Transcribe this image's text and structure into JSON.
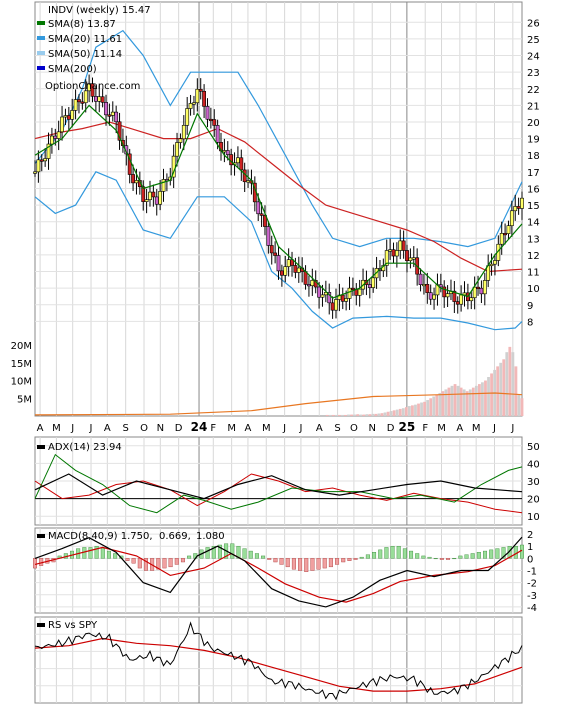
{
  "chart_data": {
    "type": "candlestick",
    "site": "OptionChance.com",
    "price_panel": {
      "title": "INDV (weekly) 15.47",
      "legend": [
        {
          "label": "SMA(8) 13.87",
          "color": "#007700"
        },
        {
          "label": "SMA(20) 11.61",
          "color": "#3399dd"
        },
        {
          "label": "SMA(50) 11.14",
          "color": "#99ccee"
        },
        {
          "label": "SMA(200)",
          "color": "#0000cc"
        }
      ],
      "y_ticks": [
        "26",
        "25",
        "24",
        "23",
        "22",
        "21",
        "20",
        "19",
        "18",
        "17",
        "16",
        "15",
        "14",
        "13",
        "12",
        "11",
        "10",
        "9",
        "8"
      ],
      "ylim": [
        7,
        26.5
      ],
      "close_path": [
        [
          0,
          17
        ],
        [
          4,
          18.5
        ],
        [
          8,
          20
        ],
        [
          12,
          21
        ],
        [
          16,
          22
        ],
        [
          20,
          21
        ],
        [
          24,
          20
        ],
        [
          28,
          17
        ],
        [
          32,
          15.5
        ],
        [
          36,
          15.4
        ],
        [
          40,
          17
        ],
        [
          44,
          20
        ],
        [
          48,
          22
        ],
        [
          52,
          20
        ],
        [
          56,
          18
        ],
        [
          60,
          17.5
        ],
        [
          64,
          16
        ],
        [
          68,
          13.5
        ],
        [
          72,
          11
        ],
        [
          76,
          11.5
        ],
        [
          80,
          10.5
        ],
        [
          84,
          9.8
        ],
        [
          88,
          9
        ],
        [
          92,
          9.6
        ],
        [
          96,
          10
        ],
        [
          100,
          10.5
        ],
        [
          104,
          12
        ],
        [
          108,
          12.5
        ],
        [
          112,
          11.5
        ],
        [
          116,
          9.5
        ],
        [
          120,
          10
        ],
        [
          124,
          9.3
        ],
        [
          128,
          9.5
        ],
        [
          132,
          10
        ],
        [
          136,
          12
        ],
        [
          140,
          14
        ],
        [
          144,
          15.5
        ]
      ],
      "sma8_path": [
        [
          0,
          18
        ],
        [
          8,
          19
        ],
        [
          16,
          21
        ],
        [
          24,
          19.5
        ],
        [
          32,
          16
        ],
        [
          40,
          16.5
        ],
        [
          48,
          20.5
        ],
        [
          56,
          18
        ],
        [
          64,
          16.5
        ],
        [
          72,
          12.5
        ],
        [
          80,
          11
        ],
        [
          88,
          9.4
        ],
        [
          96,
          10
        ],
        [
          104,
          11.5
        ],
        [
          112,
          11.5
        ],
        [
          120,
          10
        ],
        [
          128,
          9.5
        ],
        [
          136,
          12
        ],
        [
          144,
          13.87
        ]
      ],
      "sma20_upper_path": [
        [
          0,
          17.5
        ],
        [
          8,
          19.5
        ],
        [
          14,
          22
        ],
        [
          18,
          24.5
        ],
        [
          26,
          25.5
        ],
        [
          32,
          24
        ],
        [
          40,
          21
        ],
        [
          46,
          23
        ],
        [
          52,
          23
        ],
        [
          60,
          23
        ],
        [
          66,
          21
        ],
        [
          74,
          18
        ],
        [
          82,
          15
        ],
        [
          88,
          13
        ],
        [
          96,
          12.5
        ],
        [
          104,
          13
        ],
        [
          112,
          13
        ],
        [
          120,
          12.8
        ],
        [
          128,
          12.5
        ],
        [
          136,
          13
        ],
        [
          144,
          16.4
        ]
      ],
      "sma20_lower_path": [
        [
          0,
          15.5
        ],
        [
          6,
          14.5
        ],
        [
          12,
          15
        ],
        [
          18,
          17
        ],
        [
          24,
          16.5
        ],
        [
          32,
          13.5
        ],
        [
          40,
          13
        ],
        [
          48,
          15.5
        ],
        [
          56,
          15.5
        ],
        [
          64,
          14
        ],
        [
          70,
          11
        ],
        [
          76,
          10
        ],
        [
          82,
          8.6
        ],
        [
          88,
          7.6
        ],
        [
          94,
          8.2
        ],
        [
          104,
          8.3
        ],
        [
          112,
          8.2
        ],
        [
          120,
          8.2
        ],
        [
          128,
          7.9
        ],
        [
          136,
          7.5
        ],
        [
          142,
          7.6
        ],
        [
          144,
          8
        ]
      ],
      "sma50_path": [
        [
          0,
          19
        ],
        [
          8,
          19.4
        ],
        [
          14,
          19.6
        ],
        [
          22,
          20
        ],
        [
          30,
          19.5
        ],
        [
          38,
          19
        ],
        [
          46,
          19
        ],
        [
          54,
          19.6
        ],
        [
          62,
          18.8
        ],
        [
          70,
          17.5
        ],
        [
          78,
          16.2
        ],
        [
          86,
          15
        ],
        [
          94,
          14.5
        ],
        [
          102,
          14
        ],
        [
          110,
          13.5
        ],
        [
          118,
          12.8
        ],
        [
          126,
          11.8
        ],
        [
          134,
          11
        ],
        [
          144,
          11.14
        ]
      ]
    },
    "volume_panel": {
      "y_ticks": [
        "20M",
        "15M",
        "10M",
        "5M"
      ],
      "ylim": [
        0,
        22
      ],
      "bars_millions": [
        0.3,
        0.3,
        0.3,
        0.3,
        0.3,
        0.3,
        0.3,
        0.4,
        0.4,
        0.4,
        0.5,
        0.4,
        0.4,
        0.5,
        0.5,
        0.6,
        0.6,
        0.7,
        0.8,
        1.0,
        1.2,
        1.4,
        1.6,
        1.8,
        2.0,
        2.2,
        2.5,
        2.8,
        3.0,
        3.2,
        3.5,
        3.8,
        4.0,
        4.5,
        5.0,
        5.5,
        6.0,
        6.5,
        7.0,
        7.5,
        8.0,
        8.5,
        9.0,
        8.5,
        8.0,
        7.5,
        7.0,
        7.5,
        8.0,
        8.5,
        9.0,
        9.5,
        10.0,
        11.0,
        12.0,
        13.0,
        14.0,
        15.0,
        16.0,
        18.0,
        19.5,
        18.0,
        14.0,
        6.0,
        5.0
      ],
      "avg_path": [
        [
          0,
          0.3
        ],
        [
          40,
          0.5
        ],
        [
          64,
          1.5
        ],
        [
          80,
          3.5
        ],
        [
          100,
          5.5
        ],
        [
          120,
          6
        ],
        [
          136,
          6.5
        ],
        [
          144,
          6
        ]
      ]
    },
    "x_months": [
      {
        "i": 2,
        "label": "A"
      },
      {
        "i": 10,
        "label": "M"
      },
      {
        "i": 18,
        "label": "J"
      },
      {
        "i": 27,
        "label": "J"
      },
      {
        "i": 35,
        "label": "A"
      },
      {
        "i": 44,
        "label": "S"
      },
      {
        "i": 53,
        "label": "O"
      },
      {
        "i": 61,
        "label": "N"
      },
      {
        "i": 70,
        "label": "D"
      },
      {
        "i": 80,
        "label": "24",
        "year": true
      },
      {
        "i": 87,
        "label": "F"
      },
      {
        "i": 96,
        "label": "M"
      },
      {
        "i": 104,
        "label": "A"
      },
      {
        "i": 113,
        "label": "M"
      },
      {
        "i": 122,
        "label": "J"
      },
      {
        "i": 130,
        "label": "J"
      },
      {
        "i": 139,
        "label": "A"
      },
      {
        "i": 148,
        "label": "S"
      },
      {
        "i": 156,
        "label": "O"
      },
      {
        "i": 165,
        "label": "N"
      },
      {
        "i": 174,
        "label": "D"
      },
      {
        "i": 182,
        "label": "25",
        "year": true
      },
      {
        "i": 191,
        "label": "F"
      },
      {
        "i": 199,
        "label": "M"
      },
      {
        "i": 208,
        "label": "A"
      },
      {
        "i": 216,
        "label": "M"
      },
      {
        "i": 225,
        "label": "J"
      },
      {
        "i": 234,
        "label": "J"
      }
    ],
    "adx_panel": {
      "title": "ADX(14) 23.94",
      "y_ticks": [
        "50",
        "40",
        "30",
        "20",
        "10"
      ],
      "ylim": [
        5,
        55
      ],
      "adx": [
        [
          0,
          25
        ],
        [
          10,
          34
        ],
        [
          20,
          22
        ],
        [
          30,
          30
        ],
        [
          40,
          25
        ],
        [
          50,
          20
        ],
        [
          60,
          28
        ],
        [
          70,
          33
        ],
        [
          80,
          25
        ],
        [
          90,
          22
        ],
        [
          100,
          25
        ],
        [
          110,
          28
        ],
        [
          120,
          30
        ],
        [
          130,
          26
        ],
        [
          144,
          23.94
        ]
      ],
      "plus_di": [
        [
          0,
          20
        ],
        [
          6,
          45
        ],
        [
          12,
          36
        ],
        [
          20,
          28
        ],
        [
          28,
          16
        ],
        [
          36,
          12
        ],
        [
          44,
          22
        ],
        [
          50,
          19
        ],
        [
          58,
          14
        ],
        [
          66,
          18
        ],
        [
          76,
          26
        ],
        [
          86,
          24
        ],
        [
          96,
          24
        ],
        [
          106,
          20
        ],
        [
          114,
          22
        ],
        [
          124,
          18
        ],
        [
          132,
          28
        ],
        [
          140,
          36
        ],
        [
          144,
          38
        ]
      ],
      "minus_di": [
        [
          0,
          30
        ],
        [
          8,
          20
        ],
        [
          16,
          22
        ],
        [
          24,
          28
        ],
        [
          32,
          30
        ],
        [
          40,
          25
        ],
        [
          48,
          16
        ],
        [
          56,
          24
        ],
        [
          64,
          34
        ],
        [
          72,
          30
        ],
        [
          80,
          24
        ],
        [
          88,
          26
        ],
        [
          96,
          22
        ],
        [
          104,
          19
        ],
        [
          112,
          23
        ],
        [
          120,
          20
        ],
        [
          128,
          18
        ],
        [
          136,
          14
        ],
        [
          144,
          12
        ]
      ]
    },
    "macd_panel": {
      "title": "MACD(8,40,9) 1.750,",
      "signal_label": "0.669,",
      "hist_label": "1.080",
      "signal_color": "#cc0000",
      "hist_color": "#0000cc",
      "y_ticks": [
        "2",
        "1",
        "0",
        "-1",
        "-2",
        "-3",
        "-4"
      ],
      "ylim": [
        -4.5,
        2.5
      ],
      "macd": [
        [
          0,
          0
        ],
        [
          8,
          0.8
        ],
        [
          16,
          1.7
        ],
        [
          24,
          0.5
        ],
        [
          32,
          -2
        ],
        [
          40,
          -2.8
        ],
        [
          48,
          0.2
        ],
        [
          54,
          1.0
        ],
        [
          62,
          -0.2
        ],
        [
          70,
          -2.5
        ],
        [
          78,
          -3.5
        ],
        [
          86,
          -4
        ],
        [
          94,
          -3.2
        ],
        [
          102,
          -1.8
        ],
        [
          110,
          -1.0
        ],
        [
          118,
          -1.5
        ],
        [
          126,
          -1.0
        ],
        [
          134,
          -1.0
        ],
        [
          140,
          0.5
        ],
        [
          144,
          1.75
        ]
      ],
      "signal": [
        [
          0,
          -0.5
        ],
        [
          10,
          0.2
        ],
        [
          20,
          0.9
        ],
        [
          30,
          0.2
        ],
        [
          40,
          -1.4
        ],
        [
          50,
          -0.8
        ],
        [
          58,
          0.4
        ],
        [
          66,
          -0.8
        ],
        [
          74,
          -2.1
        ],
        [
          84,
          -3.2
        ],
        [
          92,
          -3.6
        ],
        [
          100,
          -2.9
        ],
        [
          108,
          -1.9
        ],
        [
          118,
          -1.4
        ],
        [
          128,
          -1.1
        ],
        [
          136,
          -0.6
        ],
        [
          144,
          0.669
        ]
      ],
      "hist": [
        -0.8,
        -0.6,
        -0.4,
        -0.3,
        0.2,
        0.4,
        0.6,
        0.8,
        0.9,
        0.9,
        1.0,
        0.8,
        0.6,
        0.4,
        0.2,
        -0.2,
        -0.4,
        -0.8,
        -1.0,
        -1.0,
        -0.9,
        -0.8,
        -0.7,
        -0.5,
        -0.3,
        0.2,
        0.4,
        0.7,
        0.9,
        1.0,
        1.1,
        1.2,
        1.2,
        1.0,
        0.8,
        0.6,
        0.4,
        0.2,
        -0.1,
        -0.3,
        -0.5,
        -0.7,
        -0.9,
        -1.0,
        -1.1,
        -1.0,
        -0.9,
        -0.8,
        -0.7,
        -0.5,
        -0.3,
        -0.2,
        -0.1,
        0.1,
        0.3,
        0.5,
        0.7,
        0.9,
        1.0,
        1.0,
        0.8,
        0.6,
        0.4,
        0.2,
        0.1,
        0.0,
        -0.1,
        -0.1,
        0.0,
        0.2,
        0.3,
        0.4,
        0.5,
        0.6,
        0.7,
        0.8,
        0.9,
        1.0,
        1.0,
        1.1
      ]
    },
    "rs_panel": {
      "title": "RS vs SPY",
      "price": [
        [
          0,
          1.0
        ],
        [
          8,
          1.2
        ],
        [
          16,
          1.6
        ],
        [
          22,
          1.4
        ],
        [
          28,
          0.5
        ],
        [
          34,
          0.7
        ],
        [
          40,
          0.3
        ],
        [
          46,
          1.9
        ],
        [
          52,
          1.0
        ],
        [
          58,
          0.7
        ],
        [
          64,
          0.4
        ],
        [
          70,
          -0.4
        ],
        [
          76,
          -0.5
        ],
        [
          82,
          -0.8
        ],
        [
          88,
          -1.0
        ],
        [
          94,
          -0.7
        ],
        [
          100,
          -0.4
        ],
        [
          106,
          -0.2
        ],
        [
          112,
          -0.3
        ],
        [
          118,
          -0.9
        ],
        [
          124,
          -0.8
        ],
        [
          130,
          -0.4
        ],
        [
          136,
          0.2
        ],
        [
          140,
          0.6
        ],
        [
          144,
          1.0
        ]
      ],
      "ma": [
        [
          0,
          1.0
        ],
        [
          10,
          1.1
        ],
        [
          20,
          1.4
        ],
        [
          30,
          1.2
        ],
        [
          40,
          1.1
        ],
        [
          50,
          0.9
        ],
        [
          60,
          0.6
        ],
        [
          70,
          0.2
        ],
        [
          80,
          -0.2
        ],
        [
          90,
          -0.6
        ],
        [
          100,
          -0.8
        ],
        [
          110,
          -0.8
        ],
        [
          120,
          -0.7
        ],
        [
          130,
          -0.5
        ],
        [
          144,
          0.2
        ]
      ],
      "ylim": [
        -1.3,
        2.3
      ]
    }
  }
}
